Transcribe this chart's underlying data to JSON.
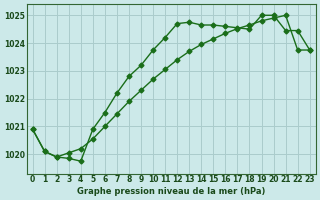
{
  "xlabel": "Graphe pression niveau de la mer (hPa)",
  "xlim": [
    -0.5,
    23.5
  ],
  "ylim": [
    1019.3,
    1025.4
  ],
  "xticks": [
    0,
    1,
    2,
    3,
    4,
    5,
    6,
    7,
    8,
    9,
    10,
    11,
    12,
    13,
    14,
    15,
    16,
    17,
    18,
    19,
    20,
    21,
    22,
    23
  ],
  "yticks": [
    1020,
    1021,
    1022,
    1023,
    1024,
    1025
  ],
  "background_color": "#cce9e9",
  "grid_color": "#aacccc",
  "line_color": "#1a6e1a",
  "series1_x": [
    0,
    1,
    2,
    3,
    4,
    5,
    6,
    7,
    8,
    9,
    10,
    11,
    12,
    13,
    14,
    15,
    16,
    17,
    18,
    19,
    20,
    21,
    22,
    23
  ],
  "series1_y": [
    1020.9,
    1020.1,
    1019.9,
    1019.85,
    1019.75,
    1020.9,
    1021.5,
    1022.2,
    1022.8,
    1023.2,
    1023.75,
    1024.2,
    1024.7,
    1024.75,
    1024.65,
    1024.65,
    1024.6,
    1024.55,
    1024.5,
    1025.0,
    1025.0,
    1024.45,
    1024.45,
    1023.75
  ],
  "series2_x": [
    0,
    1,
    2,
    3,
    4,
    5,
    6,
    7,
    8,
    9,
    10,
    11,
    12,
    13,
    14,
    15,
    16,
    17,
    18,
    19,
    20,
    21,
    22,
    23
  ],
  "series2_y": [
    1020.9,
    1020.1,
    1019.9,
    1020.05,
    1020.2,
    1020.55,
    1021.0,
    1021.45,
    1021.9,
    1022.3,
    1022.7,
    1023.05,
    1023.4,
    1023.7,
    1023.95,
    1024.15,
    1024.35,
    1024.52,
    1024.65,
    1024.8,
    1024.9,
    1025.0,
    1023.75,
    1023.75
  ],
  "marker": "D",
  "markersize": 2.5,
  "linewidth": 1.0,
  "label_fontsize": 6.0,
  "tick_fontsize": 5.5,
  "label_color": "#1a4a1a",
  "label_fontweight": "bold"
}
